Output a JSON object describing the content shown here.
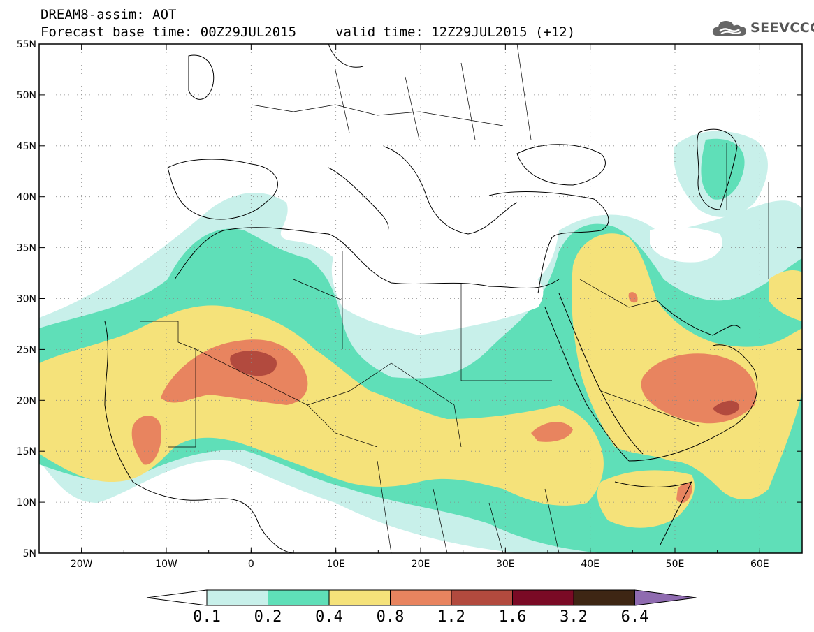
{
  "header": {
    "title": "DREAM8-assim: AOT",
    "base_time": "Forecast base time: 00Z29JUL2015",
    "valid_time": "valid time: 12Z29JUL2015 (+12)",
    "logo_text": "SEEVCCC",
    "logo_icon": "cloud-icon"
  },
  "map": {
    "lon_range": [
      -25,
      65
    ],
    "lat_range": [
      5,
      55
    ],
    "lon_ticks": [
      "20W",
      "10W",
      "0",
      "10E",
      "20E",
      "30E",
      "40E",
      "50E",
      "60E"
    ],
    "lat_ticks": [
      "5N",
      "10N",
      "15N",
      "20N",
      "25N",
      "30N",
      "35N",
      "40N",
      "45N",
      "50N",
      "55N"
    ]
  },
  "colorbar": {
    "labels": [
      "0.1",
      "0.2",
      "0.4",
      "0.8",
      "1.2",
      "1.6",
      "3.2",
      "6.4"
    ],
    "colors": [
      "#c8f0ea",
      "#5fdfb8",
      "#f5e27a",
      "#e8845f",
      "#b24a3e",
      "#7a0a25",
      "#3e2614",
      "#8f6bb0"
    ],
    "under_color": "#ffffff"
  }
}
